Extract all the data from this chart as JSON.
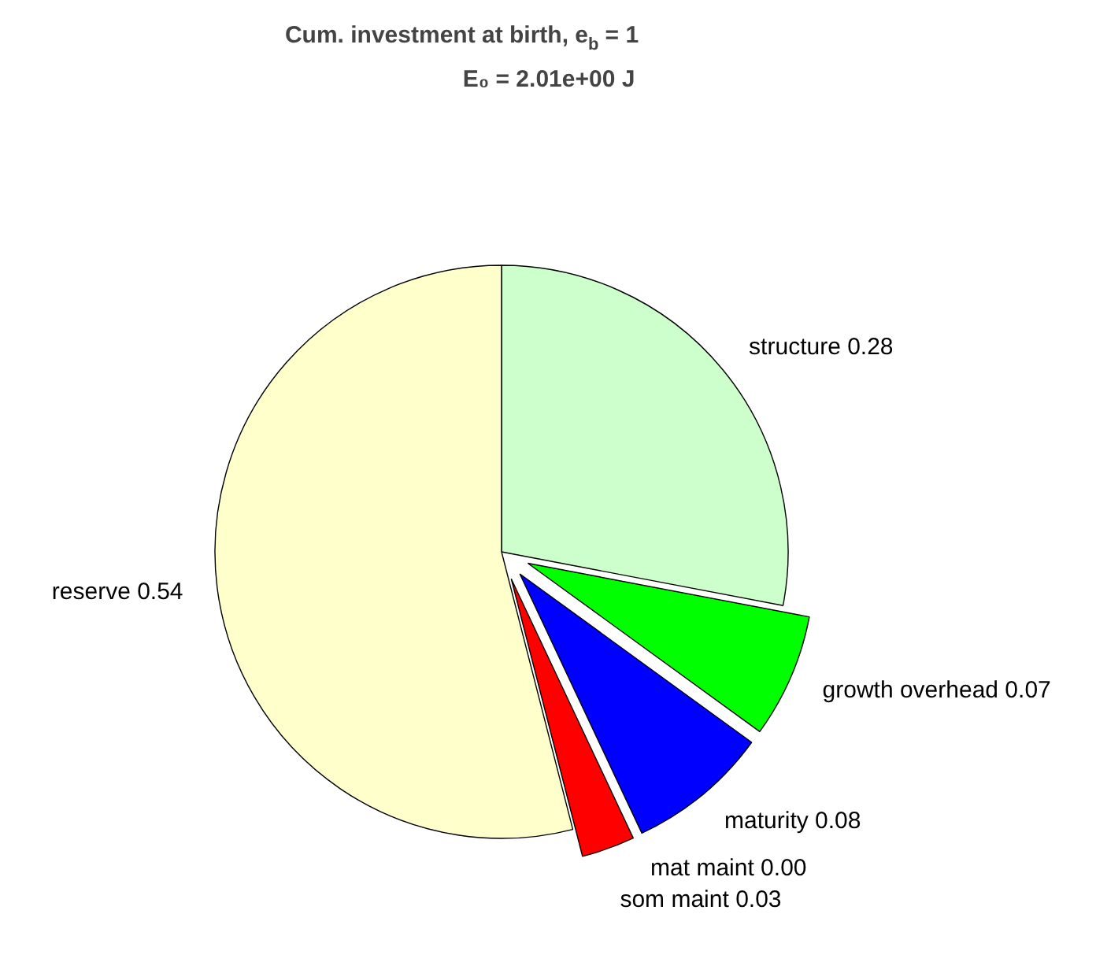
{
  "chart_data": {
    "type": "pie",
    "title": "Cum. investment at birth, e$_{b}$ = 1",
    "subtitle": "E₀ = 2.01e+00 J",
    "categories": [
      "structure 0.28",
      "growth overhead 0.07",
      "maturity 0.08",
      "mat maint 0.00",
      "som maint 0.03",
      "reserve 0.54"
    ],
    "values": [
      0.28,
      0.07,
      0.08,
      0.0,
      0.03,
      0.54
    ],
    "colors": [
      "#ccffcc",
      "#00ff00",
      "#0000ff",
      "#ff00ff",
      "#ff0000",
      "#ffffcc"
    ],
    "legend": false
  }
}
